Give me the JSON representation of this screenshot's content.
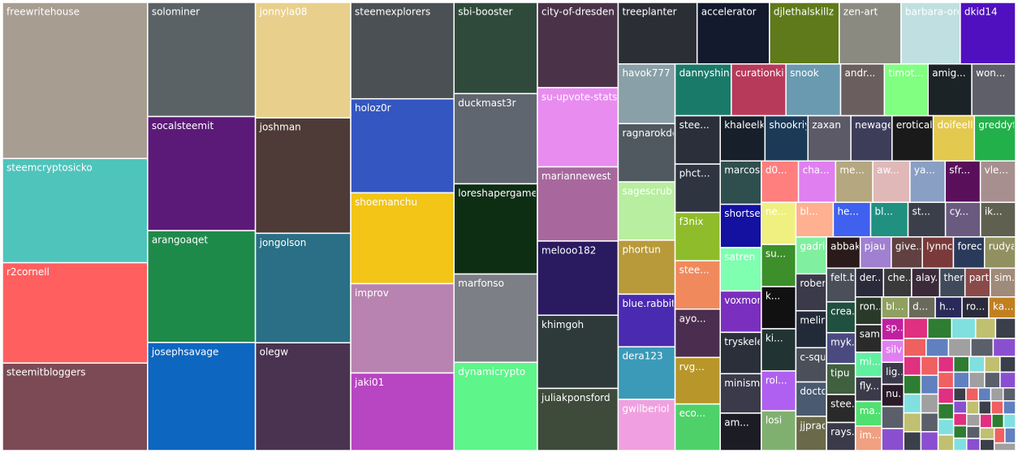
{
  "chart_data": {
    "type": "treemap",
    "categories": [
      "freewritehouse",
      "steemcryptosicko",
      "r2cornell",
      "steemitbloggers",
      "solominer",
      "socalsteemit",
      "arangoaqet",
      "josephsavage",
      "jonnyla08",
      "joshman",
      "jongolson",
      "olegw",
      "steemexplorers",
      "holoz0r",
      "shoemanchu",
      "improv",
      "jaki01",
      "sbi-booster",
      "duckmast3r",
      "loreshapergames",
      "marfonso",
      "dynamicrypto",
      "city-of-dresden",
      "su-upvote-stats",
      "mariannewest",
      "melooo182",
      "khimgoh",
      "juliakponsford",
      "treeplanter",
      "accelerator",
      "djlethalskillz",
      "zen-art",
      "barbara-orenya",
      "dkid14",
      "havok777",
      "ragnarokdel",
      "sagescrub",
      "phortun",
      "blue.rabbit",
      "dera123",
      "gwilberiol",
      "dannyshine",
      "curationkiwi",
      "snook",
      "andr...",
      "timot...",
      "amig...",
      "won...",
      "stee...",
      "phct...",
      "f3nix",
      "stee...",
      "ayo...",
      "rvg...",
      "eco...",
      "khaleelk...",
      "shookriya",
      "zaxan",
      "newagei...",
      "eroticab...",
      "doifeell...",
      "greddyf...",
      "marcosdk",
      "shortseg...",
      "satren",
      "voxmortis",
      "tryskele",
      "minisma...",
      "am...",
      "d0...",
      "cha...",
      "me...",
      "aw...",
      "ya...",
      "sfr...",
      "vle...",
      "ne...",
      "su...",
      "k...",
      "ki...",
      "rol...",
      "losi",
      "bl...",
      "he...",
      "bl...",
      "st...",
      "cy...",
      "ik...",
      "gadrian",
      "rober...",
      "melin...",
      "c-squ...",
      "docto...",
      "jjprac",
      "abbak7",
      "pjau",
      "give...",
      "lynnc...",
      "forec...",
      "rudya...",
      "felt.b...",
      "crea...",
      "myk...",
      "tipu",
      "stee...",
      "rays...",
      "der...",
      "che...",
      "alay...",
      "ther...",
      "part...",
      "sim...",
      "ron...",
      "sam...",
      "mi...",
      "fly...",
      "ma...",
      "im...",
      "bl...",
      "d...",
      "h...",
      "ro...",
      "ka...",
      "sp...",
      "silv...",
      "lig...",
      "nu...",
      null,
      null,
      null,
      null,
      null,
      null,
      null,
      null,
      null,
      null,
      null,
      null,
      null,
      null,
      null,
      null,
      null,
      null,
      null,
      null,
      null,
      null,
      null,
      null,
      null,
      null,
      null,
      null,
      null,
      null,
      null,
      null,
      null,
      null,
      null,
      null,
      null,
      null,
      null,
      null,
      null,
      null,
      null,
      null,
      null,
      null,
      null,
      null,
      null,
      null,
      null,
      null,
      null,
      null,
      null,
      null,
      null,
      null,
      null,
      null
    ],
    "values": [
      280,
      187,
      180,
      157,
      152,
      152,
      149,
      144,
      136,
      136,
      129,
      127,
      123,
      120,
      116,
      114,
      99,
      94,
      93,
      93,
      91,
      91,
      85,
      79,
      74,
      74,
      73,
      62,
      60,
      55,
      53,
      47,
      45,
      42,
      42,
      41,
      41,
      38,
      37,
      37,
      36,
      36,
      35,
      35,
      28,
      28,
      28,
      28,
      27,
      27,
      27,
      27,
      27,
      26,
      26,
      25,
      24,
      24,
      23,
      23,
      23,
      23,
      22,
      22,
      22,
      21,
      21,
      20,
      19,
      19,
      19,
      19,
      19,
      18,
      18,
      18,
      18,
      18,
      18,
      18,
      17,
      17,
      16,
      16,
      16,
      16,
      15,
      15,
      14,
      14,
      14,
      13,
      13,
      13,
      13,
      12,
      12,
      12,
      12,
      12,
      12,
      11,
      11,
      11,
      10,
      10,
      10,
      10,
      10,
      9,
      9,
      9,
      9,
      9,
      8,
      8,
      8,
      8,
      7,
      7,
      7,
      7,
      7,
      6,
      6,
      6,
      6,
      6,
      6,
      6,
      6,
      6,
      5,
      5,
      5,
      5,
      5,
      5,
      5,
      4,
      4,
      4,
      4,
      4,
      4,
      4,
      4,
      4,
      4,
      3,
      3,
      3,
      3,
      3,
      3,
      3,
      3,
      3,
      3,
      3,
      3,
      3,
      3,
      2,
      2,
      2,
      2,
      2,
      2,
      2,
      2,
      2,
      2,
      2,
      2,
      2,
      2,
      2,
      2,
      2,
      2,
      2,
      2,
      2,
      2,
      2,
      2
    ],
    "colors": [
      "#a89d91",
      "#4fc4bb",
      "#ff5f5f",
      "#7b4a55",
      "#5a6266",
      "#5c1a78",
      "#1e8a4a",
      "#0d66c0",
      "#e8d08c",
      "#4e3a36",
      "#2a6f86",
      "#4a3350",
      "#4a5054",
      "#3456c0",
      "#f2c517",
      "#b883b0",
      "#b845c2",
      "#2f4a3a",
      "#5f6670",
      "#0e2e14",
      "#7d7f86",
      "#5ef58a",
      "#4a3349",
      "#e88cf0",
      "#a8689e",
      "#2a1a60",
      "#2e3a3a",
      "#3e4a3a",
      "#2c2e36",
      "#141a2e",
      "#5e7a1a",
      "#8a8a80",
      "#c0dfe0",
      "#5010c0",
      "#8aa0a8",
      "#505860",
      "#b8eea0",
      "#b89a3a",
      "#4a2ab0",
      "#3a9ab8",
      "#f0a0e0",
      "#1a7a6a",
      "#b83a5a",
      "#6a9ab0",
      "#6b5e5e",
      "#80ff80",
      "#1c2326",
      "#5f5f6a",
      "#2a2f3a",
      "#2e3440",
      "#8fbc2a",
      "#f08a5d",
      "#4b2e4f",
      "#b8962a",
      "#4fd16a",
      "#17202a",
      "#1c3a57",
      "#5c5a66",
      "#3d3d5a",
      "#1a1a1a",
      "#e3c94e",
      "#22b04a",
      "#2f4f4f",
      "#1410a0",
      "#7fffb0",
      "#7b2fbf",
      "#2a2f3a",
      "#3a3a4a",
      "#1c1c24",
      "#ff7f7f",
      "#e07ff0",
      "#b5a77f",
      "#e0b8b8",
      "#8a9fc4",
      "#5a0f5a",
      "#a88f8f",
      "#f0f080",
      "#3c8f2a",
      "#111111",
      "#223333",
      "#b060f0",
      "#80b070",
      "#ffb090",
      "#4060f0",
      "#209080",
      "#3a3f4a",
      "#6a5a80",
      "#606050",
      "#80f0a0",
      "#3a3a4a",
      "#222a3a",
      "#4a4f5a",
      "#4a5a70",
      "#6a6a4a",
      "#2a1a1a",
      "#a080d0",
      "#604040",
      "#7a3a3a",
      "#2a3a5a",
      "#909060",
      "#4a4f5a",
      "#205040",
      "#4a4a80",
      "#406040",
      "#2a2a2a",
      "#3a3a4a",
      "#2a2a3a",
      "#3a3a3a",
      "#3a2a3a",
      "#404a5a",
      "#8a4a4a",
      "#a08a7a",
      "#2a3a2a",
      "#2a2a2a",
      "#60f0a0",
      "#3a3a4a",
      "#50e070",
      "#f0a080",
      "#90a060",
      "#6a6a5a",
      "#2a2a5a",
      "#2a2a3a",
      "#c08020",
      "#c020a0",
      "#e080f0",
      "#3a3a4a",
      "#2a1a2a",
      "#5a5f6a",
      "#8a4fd0",
      "#e03080",
      "#2e7d32",
      "#80e0e0",
      "#c0c070",
      "#3a3f4a",
      "#f06060",
      "#6080c0",
      "#a0a0a0",
      "#5a5f6a",
      "#8a4fd0",
      "#e03080",
      "#2e7d32",
      "#80e0e0",
      "#c0c070",
      "#3a3f4a",
      "#f06060",
      "#6080c0",
      "#a0a0a0",
      "#5a5f6a",
      "#8a4fd0",
      "#e03080",
      "#2e7d32",
      "#80e0e0",
      "#c0c070",
      "#3a3f4a",
      "#f06060",
      "#6080c0",
      "#a0a0a0",
      "#5a5f6a",
      "#8a4fd0",
      "#e03080",
      "#2e7d32",
      "#80e0e0",
      "#c0c070",
      "#3a3f4a",
      "#f06060",
      "#6080c0",
      "#a0a0a0",
      "#5a5f6a",
      "#8a4fd0",
      "#e03080",
      "#2e7d32",
      "#80e0e0",
      "#c0c070",
      "#3a3f4a",
      "#f06060",
      "#6080c0",
      "#a0a0a0",
      "#5a5f6a",
      "#8a4fd0",
      "#e03080",
      "#2e7d32",
      "#80e0e0",
      "#c0c070",
      "#3a3f4a",
      "#f06060",
      "#6080c0",
      "#a0a0a0"
    ]
  }
}
